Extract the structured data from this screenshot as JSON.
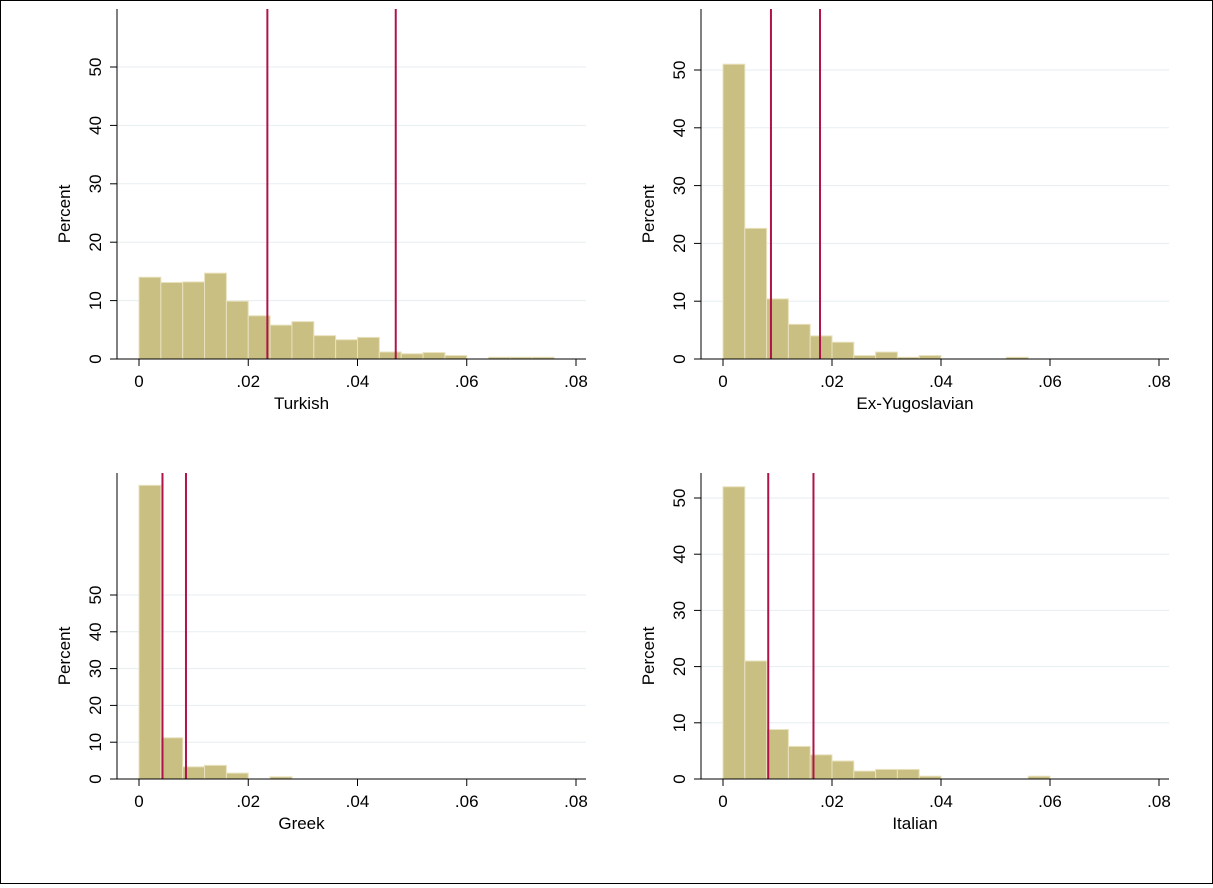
{
  "colors": {
    "bar_fill": "#CABF82",
    "bar_edge": "#E8E1BC",
    "ref_line": "#B0134A",
    "grid": "#E7EEF1",
    "axis": "#000000"
  },
  "chart_data": [
    {
      "type": "bar",
      "xlabel": "Turkish",
      "ylabel": "Percent",
      "xlim": [
        0,
        0.08
      ],
      "ylim": [
        0,
        50
      ],
      "xticks": [
        0,
        0.02,
        0.04,
        0.06,
        0.08
      ],
      "xtick_labels": [
        "0",
        ".02",
        ".04",
        ".06",
        ".08"
      ],
      "yticks": [
        0,
        10,
        20,
        30,
        40,
        50
      ],
      "ytick_labels": [
        "0",
        "10",
        "20",
        "30",
        "40",
        "50"
      ],
      "bin_start": 0,
      "bin_width": 0.004,
      "values": [
        14.0,
        13.1,
        13.2,
        14.7,
        9.9,
        7.4,
        5.8,
        6.4,
        4.0,
        3.3,
        3.7,
        1.2,
        0.9,
        1.1,
        0.6,
        0,
        0.3,
        0.3,
        0.3
      ],
      "ref_lines": [
        0.0235,
        0.047
      ]
    },
    {
      "type": "bar",
      "xlabel": "Ex-Yugoslavian",
      "ylabel": "Percent",
      "xlim": [
        0,
        0.08
      ],
      "ylim": [
        0,
        50
      ],
      "xticks": [
        0,
        0.02,
        0.04,
        0.06,
        0.08
      ],
      "xtick_labels": [
        "0",
        ".02",
        ".04",
        ".06",
        ".08"
      ],
      "yticks": [
        0,
        10,
        20,
        30,
        40,
        50
      ],
      "ytick_labels": [
        "0",
        "10",
        "20",
        "30",
        "40",
        "50"
      ],
      "bin_start": 0,
      "bin_width": 0.004,
      "values": [
        51.0,
        22.6,
        10.4,
        6.0,
        4.0,
        2.9,
        0.6,
        1.2,
        0.3,
        0.6,
        0,
        0,
        0,
        0.3
      ],
      "ref_lines": [
        0.0088,
        0.0178
      ]
    },
    {
      "type": "bar",
      "xlabel": "Greek",
      "ylabel": "Percent",
      "xlim": [
        0,
        0.08
      ],
      "ylim": [
        0,
        50
      ],
      "xticks": [
        0,
        0.02,
        0.04,
        0.06,
        0.08
      ],
      "xtick_labels": [
        "0",
        ".02",
        ".04",
        ".06",
        ".08"
      ],
      "yticks": [
        0,
        10,
        20,
        30,
        40,
        50
      ],
      "ytick_labels": [
        "0",
        "10",
        "20",
        "30",
        "40",
        "50"
      ],
      "bin_start": 0,
      "bin_width": 0.004,
      "values": [
        79.8,
        11.2,
        3.3,
        3.7,
        1.6,
        0,
        0.6
      ],
      "ref_lines": [
        0.0043,
        0.0086
      ]
    },
    {
      "type": "bar",
      "xlabel": "Italian",
      "ylabel": "Percent",
      "xlim": [
        0,
        0.08
      ],
      "ylim": [
        0,
        50
      ],
      "xticks": [
        0,
        0.02,
        0.04,
        0.06,
        0.08
      ],
      "xtick_labels": [
        "0",
        ".02",
        ".04",
        ".06",
        ".08"
      ],
      "yticks": [
        0,
        10,
        20,
        30,
        40,
        50
      ],
      "ytick_labels": [
        "0",
        "10",
        "20",
        "30",
        "40",
        "50"
      ],
      "bin_start": 0,
      "bin_width": 0.004,
      "values": [
        52.0,
        21.0,
        8.8,
        5.8,
        4.3,
        3.2,
        1.4,
        1.7,
        1.7,
        0.5,
        0,
        0,
        0,
        0,
        0.5
      ],
      "ref_lines": [
        0.0083,
        0.0166
      ]
    }
  ]
}
